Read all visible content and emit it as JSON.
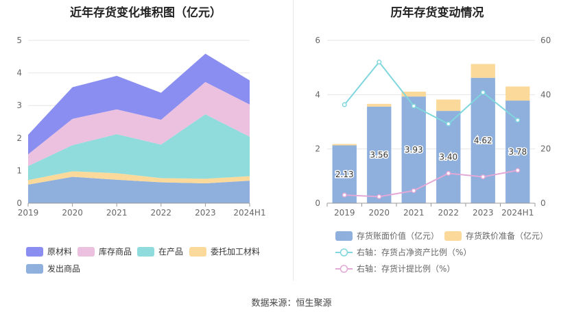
{
  "source_text": "数据来源：恒生聚源",
  "chart_data": [
    {
      "type": "area",
      "stacked": true,
      "title": "近年存货变化堆积图（亿元）",
      "categories": [
        "2019",
        "2020",
        "2021",
        "2022",
        "2023",
        "2024H1"
      ],
      "y_ticks": [
        "0",
        "1",
        "2",
        "3",
        "4",
        "5"
      ],
      "ylim": [
        0,
        5
      ],
      "grid": true,
      "legend_position": "bottom",
      "series": [
        {
          "name": "发出商品",
          "color": "#8fb0dd",
          "values": [
            0.57,
            0.81,
            0.72,
            0.64,
            0.61,
            0.69
          ]
        },
        {
          "name": "委托加工材料",
          "color": "#fbd99a",
          "values": [
            0.14,
            0.17,
            0.2,
            0.13,
            0.14,
            0.14
          ]
        },
        {
          "name": "在产品",
          "color": "#90dcdc",
          "values": [
            0.43,
            0.8,
            1.2,
            1.03,
            1.98,
            1.21
          ]
        },
        {
          "name": "库存商品",
          "color": "#ecc1e0",
          "values": [
            0.36,
            0.81,
            0.76,
            0.76,
            0.99,
            0.99
          ]
        },
        {
          "name": "原材料",
          "color": "#8a8ef0",
          "values": [
            0.6,
            0.97,
            1.03,
            0.83,
            0.87,
            0.74
          ]
        }
      ]
    },
    {
      "type": "bar",
      "title": "历年存货变动情况",
      "categories": [
        "2019",
        "2020",
        "2021",
        "2022",
        "2023",
        "2024H1"
      ],
      "y_left_ticks": [
        "0",
        "2",
        "4",
        "6"
      ],
      "y_right_ticks": [
        "0",
        "20",
        "40",
        "60"
      ],
      "ylim_left": [
        0,
        6
      ],
      "ylim_right": [
        0,
        60
      ],
      "grid": true,
      "legend_position": "bottom",
      "bar_series": [
        {
          "name": "存货账面价值（亿元）",
          "color": "#8fb0dd",
          "values": [
            2.13,
            3.56,
            3.93,
            3.4,
            4.62,
            3.78
          ],
          "labels": [
            "2.13",
            "3.56",
            "3.93",
            "3.40",
            "4.62",
            "3.78"
          ]
        },
        {
          "name": "存货跌价准备（亿元）",
          "color": "#fbd99a",
          "values": [
            0.05,
            0.1,
            0.18,
            0.42,
            0.51,
            0.52
          ]
        }
      ],
      "line_series": [
        {
          "name": "右轴：存货占净资产比例（%）",
          "color": "#7fd6dd",
          "axis": "right",
          "values": [
            36.3,
            52.0,
            35.8,
            29.2,
            40.8,
            30.6
          ]
        },
        {
          "name": "右轴：存货计提比例（%）",
          "color": "#e3a8d6",
          "axis": "right",
          "values": [
            3.0,
            2.4,
            4.6,
            11.0,
            9.7,
            12.1
          ]
        }
      ]
    }
  ]
}
